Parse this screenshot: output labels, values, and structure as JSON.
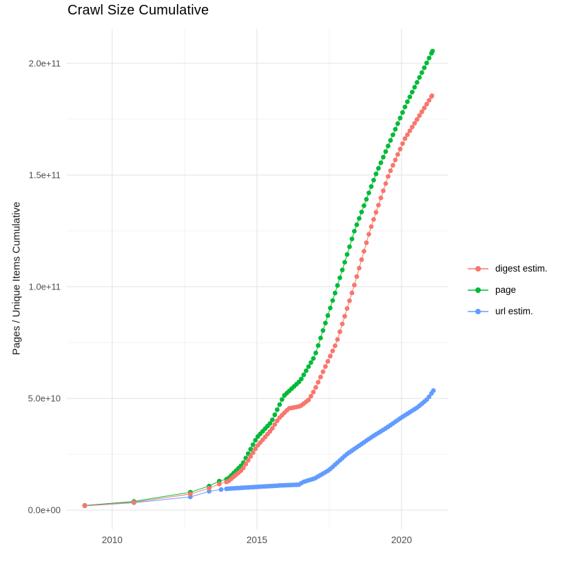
{
  "chart_data": {
    "type": "line+scatter",
    "title": "Crawl Size Cumulative",
    "xlabel": "",
    "ylabel": "Pages / Unique Items Cumulative",
    "xlim": [
      2008.43,
      2021.62
    ],
    "ylim": [
      -8600000000.0,
      215400000000.0
    ],
    "grid": true,
    "legend_position": "right",
    "x_ticks": [
      {
        "value": 2010,
        "label": "2010"
      },
      {
        "value": 2015,
        "label": "2015"
      },
      {
        "value": 2020,
        "label": "2020"
      }
    ],
    "x_minor": [
      2012.5,
      2017.5
    ],
    "y_ticks": [
      {
        "value": 0,
        "label": "0.0e+00"
      },
      {
        "value": 50000000000.0,
        "label": "5.0e+10"
      },
      {
        "value": 100000000000.0,
        "label": "1.0e+11"
      },
      {
        "value": 150000000000.0,
        "label": "1.5e+11"
      },
      {
        "value": 200000000000.0,
        "label": "2.0e+11"
      }
    ],
    "y_minor": [
      25000000000.0,
      75000000000.0,
      125000000000.0,
      175000000000.0
    ],
    "sampling_note": "dots plotted monthly (1/12 yr) interpolated between anchor data points; anchors before dense_from are single sparse crawl points",
    "point_radius": 3.4,
    "line_width": 1,
    "colors": {
      "grid_major": "#e2e2e2",
      "grid_minor": "#f0f0f0",
      "tick_text": "#4d4d4d",
      "title_text": "#000000",
      "axis_title_text": "#1a1a1a",
      "background": "#ffffff"
    },
    "series": [
      {
        "name": "digest estim.",
        "color": "#F8766D",
        "dense_from": 2013.95,
        "dense_step": 0.083333,
        "anchors": [
          [
            2009.05,
            2000000000.0
          ],
          [
            2010.75,
            3500000000.0
          ],
          [
            2012.7,
            7200000000.0
          ],
          [
            2013.35,
            9800000000.0
          ],
          [
            2013.7,
            11700000000.0
          ],
          [
            2014.0,
            12800000000.0
          ],
          [
            2014.5,
            18200000000.0
          ],
          [
            2015.0,
            28500000000.0
          ],
          [
            2015.5,
            36000000000.0
          ],
          [
            2015.75,
            41000000000.0
          ],
          [
            2016.1,
            45500000000.0
          ],
          [
            2016.5,
            46500000000.0
          ],
          [
            2016.8,
            49500000000.0
          ],
          [
            2017.0,
            54000000000.0
          ],
          [
            2017.75,
            75000000000.0
          ],
          [
            2018.35,
            100000000000.0
          ],
          [
            2018.9,
            125000000000.0
          ],
          [
            2019.55,
            150000000000.0
          ],
          [
            2020.1,
            166000000000.0
          ],
          [
            2021.05,
            185500000000.0
          ]
        ]
      },
      {
        "name": "page",
        "color": "#00BA38",
        "dense_from": 2013.95,
        "dense_step": 0.083333,
        "anchors": [
          [
            2009.05,
            2100000000.0
          ],
          [
            2010.75,
            3900000000.0
          ],
          [
            2012.7,
            8000000000.0
          ],
          [
            2013.35,
            10800000000.0
          ],
          [
            2013.7,
            13000000000.0
          ],
          [
            2014.0,
            14000000000.0
          ],
          [
            2014.5,
            20500000000.0
          ],
          [
            2015.0,
            32500000000.0
          ],
          [
            2015.5,
            39500000000.0
          ],
          [
            2015.92,
            51000000000.0
          ],
          [
            2016.5,
            58000000000.0
          ],
          [
            2017.0,
            69000000000.0
          ],
          [
            2017.77,
            100000000000.0
          ],
          [
            2018.37,
            125000000000.0
          ],
          [
            2019.1,
            150000000000.0
          ],
          [
            2020.15,
            181500000000.0
          ],
          [
            2021.07,
            205500000000.0
          ]
        ]
      },
      {
        "name": "url estim.",
        "color": "#619CFF",
        "dense_from": 2013.95,
        "dense_step": 0.083333,
        "anchors": [
          [
            2009.05,
            1900000000.0
          ],
          [
            2010.75,
            3300000000.0
          ],
          [
            2012.7,
            5900000000.0
          ],
          [
            2013.35,
            8400000000.0
          ],
          [
            2013.76,
            9200000000.0
          ],
          [
            2014.0,
            9600000000.0
          ],
          [
            2014.5,
            10000000000.0
          ],
          [
            2015.0,
            10400000000.0
          ],
          [
            2015.9,
            11100000000.0
          ],
          [
            2016.45,
            11400000000.0
          ],
          [
            2016.6,
            12600000000.0
          ],
          [
            2017.0,
            14200000000.0
          ],
          [
            2017.5,
            18000000000.0
          ],
          [
            2018.1,
            25000000000.0
          ],
          [
            2019.0,
            33000000000.0
          ],
          [
            2019.5,
            37000000000.0
          ],
          [
            2020.0,
            41500000000.0
          ],
          [
            2020.55,
            46000000000.0
          ],
          [
            2020.9,
            49800000000.0
          ],
          [
            2021.1,
            53500000000.0
          ]
        ]
      }
    ]
  }
}
